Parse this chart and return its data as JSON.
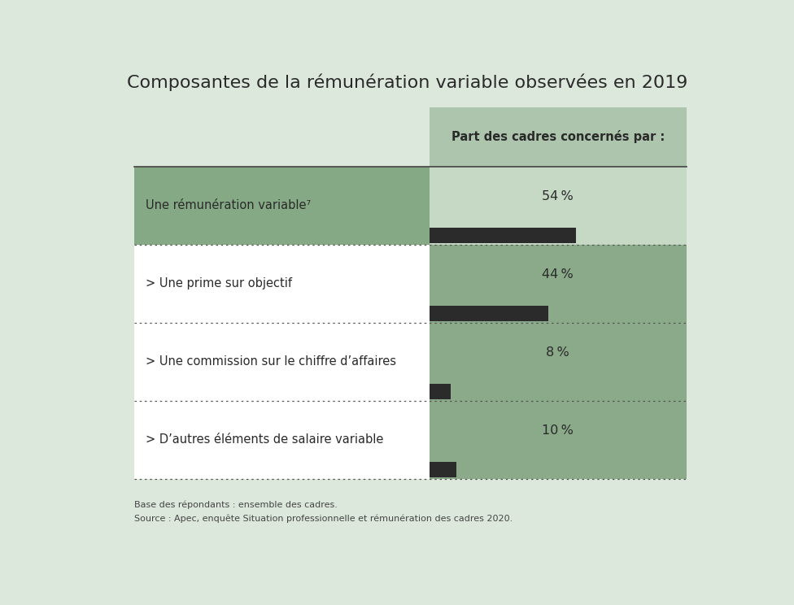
{
  "title": "Composantes de la rémunération variable observées en 2019",
  "background_color": "#dde8dd",
  "row0_label_bg": "#85a885",
  "row0_cell_bg": "#c5d9c5",
  "rowN_label_bg": "#ffffff",
  "rowN_cell_bg": "#8aaa8a",
  "header_cell_bg": "#adc4ad",
  "bar_color": "#2b2b2b",
  "header_text_line1": "Part des cadres concernés par :",
  "rows": [
    {
      "label": "Une rémunération variable⁷",
      "value": 54,
      "bold": false
    },
    {
      "label": "> Une prime sur objectif",
      "value": 44,
      "bold": false
    },
    {
      "label": "> Une commission sur le chiffre d’affaires",
      "value": 8,
      "bold": false
    },
    {
      "label": "> D’autres éléments de salaire variable",
      "value": 10,
      "bold": false
    }
  ],
  "footer_line1": "Base des répondants : ensemble des cadres.",
  "footer_line2": "Source : Apec, enquête Situation professionnelle et rémunération des cadres 2020.",
  "max_bar_pct": 90
}
